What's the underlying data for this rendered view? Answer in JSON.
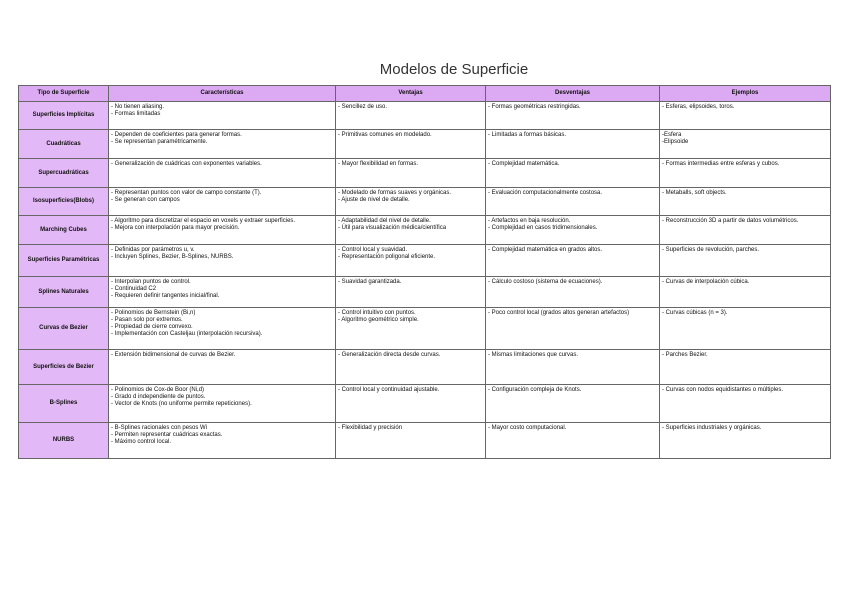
{
  "title": "Modelos de Superficie",
  "colors": {
    "header_bg": "#dcaaf2",
    "type_bg": "#e3b8f6"
  },
  "headers": [
    "Tipo de Superficie",
    "Características",
    "Ventajas",
    "Desventajas",
    "Ejemplos"
  ],
  "rows": [
    {
      "type": "Superficies Implícitas",
      "car": [
        "- No tienen aliasing.",
        "- Formas limitadas"
      ],
      "ven": [
        "- Sencillez de uso."
      ],
      "des": [
        "- Formas geométricas restringidas."
      ],
      "eje": [
        "- Esferas, elipsoides, toros."
      ]
    },
    {
      "type": "Cuadráticas",
      "car": [
        "- Dependen de coeficientes para generar formas.",
        "- Se representan paramétricamente."
      ],
      "ven": [
        "- Primitivas comunes en modelado."
      ],
      "des": [
        "- Limitadas a formas básicas."
      ],
      "eje": [
        "-Esfera",
        "-Elipsoide"
      ]
    },
    {
      "type": "Supercuadráticas",
      "car": [
        "- Generalización de cuádricas con exponentes variables."
      ],
      "ven": [
        "- Mayor flexibilidad en formas."
      ],
      "des": [
        "- Complejidad matemática."
      ],
      "eje": [
        "- Formas intermedias entre esferas y cubos."
      ]
    },
    {
      "type": "Isosuperficies(Blobs)",
      "car": [
        "- Representan puntos con valor de campo constante (T).",
        "- Se generan con campos"
      ],
      "ven": [
        "- Modelado de formas suaves y orgánicas.",
        "- Ajuste de nivel de detalle."
      ],
      "des": [
        "- Evaluación computacionalmente costosa."
      ],
      "eje": [
        "- Metaballs, soft objects."
      ]
    },
    {
      "type": "Marching Cubes",
      "car": [
        "- Algoritmo para discretizar el espacio en voxels y extraer superficies.",
        "- Mejora con interpolación para mayor precisión."
      ],
      "ven": [
        "- Adaptabilidad del nivel de detalle.",
        "- Útil para visualización médica/científica"
      ],
      "des": [
        "- Artefactos en baja resolución.",
        "- Complejidad en casos tridimensionales."
      ],
      "eje": [
        "- Reconstrucción 3D a partir de datos volumétricos."
      ]
    },
    {
      "type": "Superficies Paramétricas",
      "car": [
        "- Definidas por parámetros u, v.",
        "- Incluyen Splines, Bezier, B-Splines, NURBS."
      ],
      "ven": [
        "- Control local y suavidad.",
        "- Representación poligonal eficiente."
      ],
      "des": [
        "- Complejidad matemática en grados altos."
      ],
      "eje": [
        "- Superficies de revolución, parches."
      ]
    },
    {
      "type": "Splines Naturales",
      "car": [
        "- Interpolan puntos de control.",
        "- Continuidad C2",
        "- Requieren definir tangentes inicial/final."
      ],
      "ven": [
        "- Suavidad garantizada."
      ],
      "des": [
        "- Cálculo costoso (sistema de ecuaciones)."
      ],
      "eje": [
        "- Curvas de interpolación cúbica."
      ]
    },
    {
      "type": "Curvas de Bezier",
      "car": [
        "- Polinomios de Bernstein (Bi,n)",
        "- Pasan solo por extremos.",
        "- Propiedad de cierre convexo.",
        "- Implementación con Casteljau (interpolación recursiva)."
      ],
      "ven": [
        "- Control intuitivo con puntos.",
        "- Algoritmo geométrico simple."
      ],
      "des": [
        "- Poco control local (grados altos generan artefactos)"
      ],
      "eje": [
        "- Curvas cúbicas (n = 3)."
      ]
    },
    {
      "type": "Superficies de Bezier",
      "car": [
        "- Extensión bidimensional de curvas de Bezier."
      ],
      "ven": [
        "- Generalización directa desde curvas."
      ],
      "des": [
        "- Mismas limitaciones que curvas."
      ],
      "eje": [
        "- Parches Bezier."
      ]
    },
    {
      "type": "B-Splines",
      "car": [
        "- Polinomios de Cox-de Boor (Ni,d)",
        "- Grado d independiente de puntos.",
        "- Vector de Knots (no uniforme permite repeticiones)."
      ],
      "ven": [
        "- Control local y continuidad ajustable."
      ],
      "des": [
        "- Configuración compleja de Knots."
      ],
      "eje": [
        "- Curvas con nodos equidistantes o múltiples."
      ]
    },
    {
      "type": "NURBS",
      "car": [
        "- B-Splines racionales con pesos Wi",
        "- Permiten representar cuádricas exactas.",
        "- Máximo control local."
      ],
      "ven": [
        "- Flexibilidad y precisión"
      ],
      "des": [
        "- Mayor costo computacional."
      ],
      "eje": [
        "- Superficies industriales y orgánicas."
      ]
    }
  ]
}
